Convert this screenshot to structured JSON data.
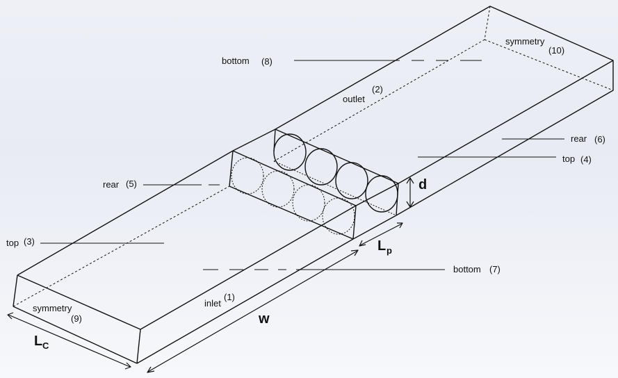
{
  "labels": {
    "bottom_upper": {
      "text": "bottom",
      "num": "(8)"
    },
    "symmetry_upper": {
      "text": "symmetry",
      "num": "(10)"
    },
    "outlet": {
      "text": "outlet",
      "num": "(2)"
    },
    "rear_right": {
      "text": "rear",
      "num": "(6)"
    },
    "top_right": {
      "text": "top",
      "num": "(4)"
    },
    "rear_left": {
      "text": "rear",
      "num": "(5)"
    },
    "top_left": {
      "text": "top",
      "num": "(3)"
    },
    "bottom_lower": {
      "text": "bottom",
      "num": "(7)"
    },
    "inlet": {
      "text": "inlet",
      "num": "(1)"
    },
    "symmetry_lower": {
      "text": "symmetry",
      "num": "(9)"
    }
  },
  "dimensions": {
    "d": "d",
    "w": "w",
    "lp": {
      "main": "L",
      "sub": "p"
    },
    "lc": {
      "main": "L",
      "sub": "C"
    }
  }
}
